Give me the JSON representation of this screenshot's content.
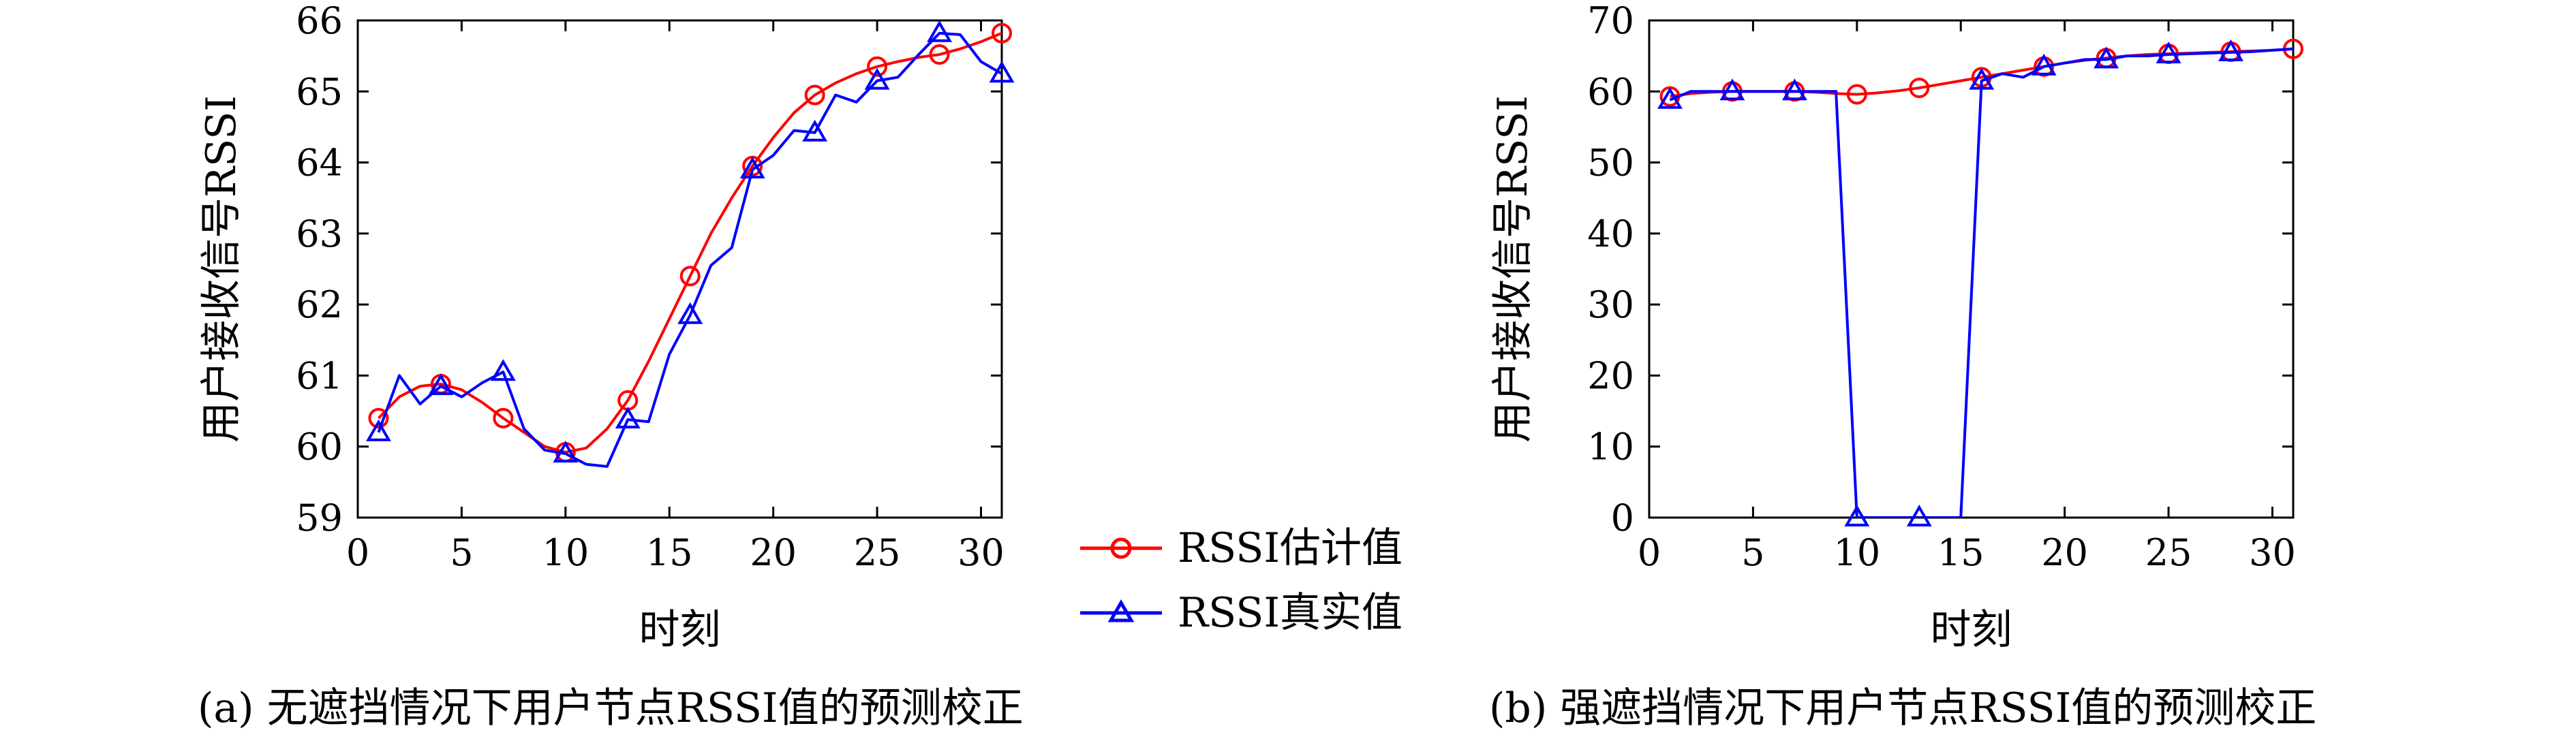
{
  "chart_data": [
    {
      "type": "line",
      "xlabel": "时刻",
      "ylabel": "用户接收信号RSSI",
      "caption": "(a) 无遮挡情况下用户节点RSSI值的预测校正",
      "xlim": [
        0,
        31
      ],
      "ylim": [
        59,
        66
      ],
      "xticks": [
        0,
        5,
        10,
        15,
        20,
        25,
        30
      ],
      "yticks": [
        59,
        60,
        61,
        62,
        63,
        64,
        65,
        66
      ],
      "series": [
        {
          "name": "RSSI估计值",
          "color": "#ff0000",
          "marker": "circle",
          "x": [
            1,
            2,
            3,
            4,
            5,
            6,
            7,
            8,
            9,
            10,
            11,
            12,
            13,
            14,
            15,
            16,
            17,
            18,
            19,
            20,
            21,
            22,
            23,
            24,
            25,
            26,
            27,
            28,
            29,
            30,
            31
          ],
          "y": [
            60.4,
            60.7,
            60.85,
            60.88,
            60.8,
            60.62,
            60.4,
            60.2,
            60.0,
            59.92,
            59.98,
            60.25,
            60.65,
            61.2,
            61.8,
            62.4,
            63.0,
            63.5,
            63.95,
            64.35,
            64.7,
            64.95,
            65.12,
            65.25,
            65.35,
            65.42,
            65.48,
            65.52,
            65.6,
            65.7,
            65.82
          ],
          "marker_every": 3
        },
        {
          "name": "RSSI真实值",
          "color": "#0000ff",
          "marker": "triangle",
          "x": [
            1,
            2,
            3,
            4,
            5,
            6,
            7,
            8,
            9,
            10,
            11,
            12,
            13,
            14,
            15,
            16,
            17,
            18,
            19,
            20,
            21,
            22,
            23,
            24,
            25,
            26,
            27,
            28,
            29,
            30,
            31
          ],
          "y": [
            60.2,
            61.0,
            60.6,
            60.85,
            60.7,
            60.9,
            61.05,
            60.25,
            59.95,
            59.9,
            59.75,
            59.72,
            60.38,
            60.35,
            61.3,
            61.85,
            62.55,
            62.8,
            63.9,
            64.1,
            64.45,
            64.42,
            64.95,
            64.85,
            65.15,
            65.2,
            65.52,
            65.82,
            65.8,
            65.42,
            65.25
          ],
          "marker_every": 3
        }
      ]
    },
    {
      "type": "line",
      "xlabel": "时刻",
      "ylabel": "用户接收信号RSSI",
      "caption": "(b) 强遮挡情况下用户节点RSSI值的预测校正",
      "xlim": [
        0,
        31
      ],
      "ylim": [
        0,
        70
      ],
      "xticks": [
        0,
        5,
        10,
        15,
        20,
        25,
        30
      ],
      "yticks": [
        0,
        10,
        20,
        30,
        40,
        50,
        60,
        70
      ],
      "series": [
        {
          "name": "RSSI估计值",
          "color": "#ff0000",
          "marker": "circle",
          "x": [
            1,
            2,
            3,
            4,
            5,
            6,
            7,
            8,
            9,
            10,
            11,
            12,
            13,
            14,
            15,
            16,
            17,
            18,
            19,
            20,
            21,
            22,
            23,
            24,
            25,
            26,
            27,
            28,
            29,
            30,
            31
          ],
          "y": [
            59.3,
            59.7,
            59.9,
            60.0,
            60.0,
            60.0,
            60.0,
            59.9,
            59.7,
            59.6,
            59.8,
            60.1,
            60.5,
            61.0,
            61.5,
            62.0,
            62.5,
            63.0,
            63.5,
            64.0,
            64.4,
            64.7,
            65.0,
            65.2,
            65.3,
            65.4,
            65.5,
            65.6,
            65.7,
            65.8,
            66.0
          ],
          "marker_every": 3
        },
        {
          "name": "RSSI真实值",
          "color": "#0000ff",
          "marker": "triangle",
          "x": [
            1,
            2,
            3,
            4,
            5,
            6,
            7,
            8,
            9,
            9,
            10,
            11,
            12,
            13,
            14,
            15,
            16,
            17,
            18,
            19,
            20,
            21,
            22,
            23,
            24,
            25,
            26,
            27,
            28,
            29,
            30,
            31
          ],
          "y": [
            58.8,
            60.0,
            60.0,
            60.0,
            60.0,
            60.0,
            60.0,
            60.0,
            60.0,
            59.5,
            0,
            0,
            0,
            0,
            0,
            0,
            61.5,
            62.5,
            62.0,
            63.5,
            64.0,
            64.5,
            64.5,
            65.0,
            65.0,
            65.2,
            65.3,
            65.4,
            65.5,
            65.6,
            65.8,
            66.0
          ],
          "marker_points": [
            [
              1,
              58.8
            ],
            [
              4,
              60.0
            ],
            [
              7,
              60.0
            ],
            [
              10,
              0
            ],
            [
              13,
              0
            ],
            [
              16,
              61.5
            ],
            [
              19,
              63.5
            ],
            [
              22,
              64.5
            ],
            [
              25,
              65.2
            ],
            [
              28,
              65.5
            ]
          ]
        }
      ]
    }
  ],
  "legend": {
    "items": [
      {
        "label": "RSSI估计值",
        "color": "#ff0000",
        "marker": "circle"
      },
      {
        "label": "RSSI真实值",
        "color": "#0000ff",
        "marker": "triangle"
      }
    ]
  }
}
